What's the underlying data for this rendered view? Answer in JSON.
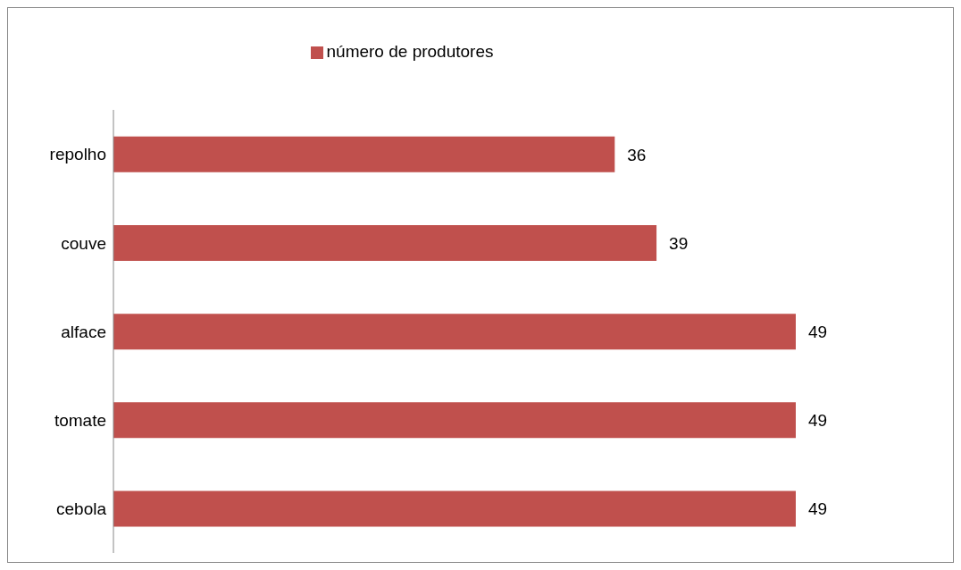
{
  "chart_data": {
    "type": "bar",
    "orientation": "horizontal",
    "categories": [
      "repolho",
      "couve",
      "alface",
      "tomate",
      "cebola"
    ],
    "series": [
      {
        "name": "número de produtores",
        "color": "#c0504d",
        "values": [
          36,
          39,
          49,
          49,
          49
        ]
      }
    ],
    "data_labels": true,
    "legend": "top",
    "grid": false
  }
}
